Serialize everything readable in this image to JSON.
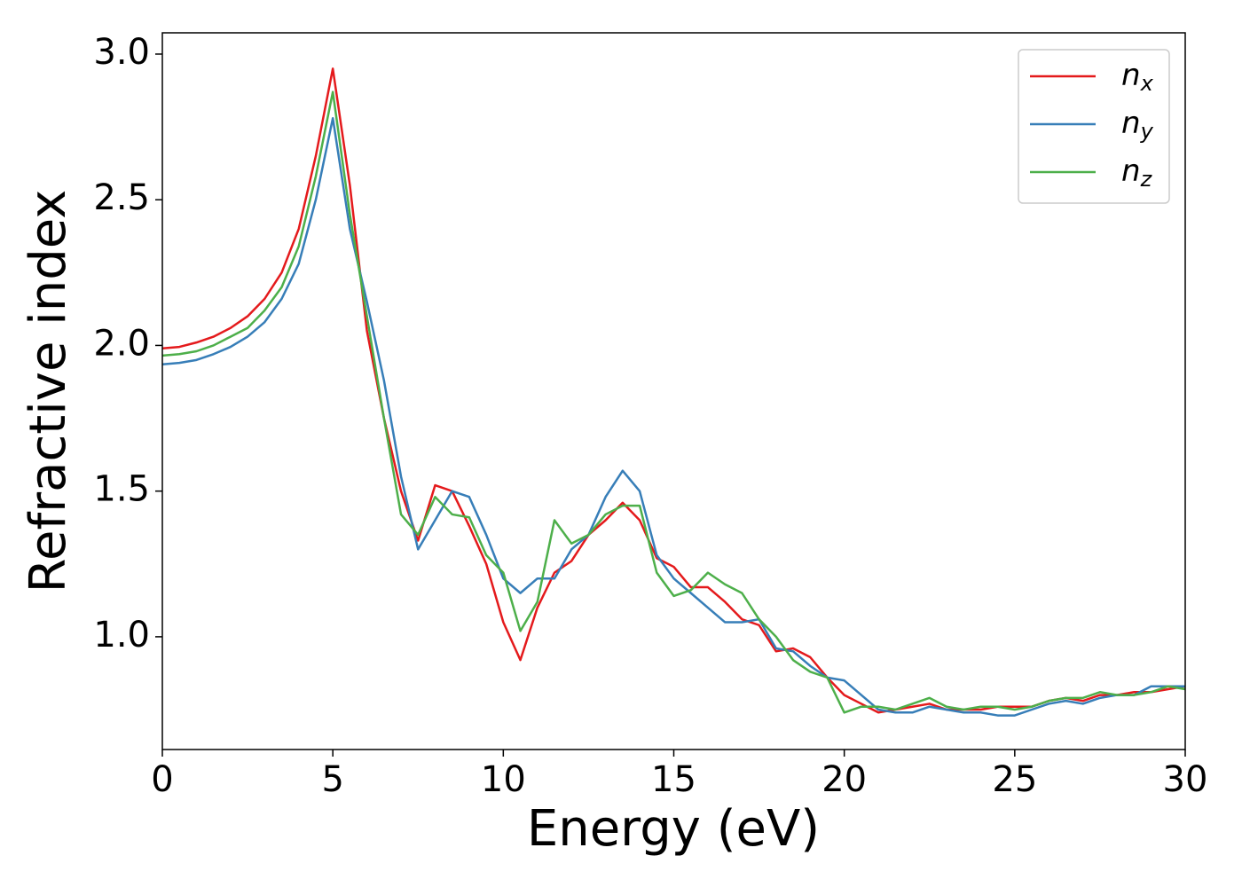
{
  "chart_data": {
    "type": "line",
    "xlabel": "Energy (eV)",
    "ylabel": "Refractive index",
    "x": [
      0,
      0.5,
      1,
      1.5,
      2,
      2.5,
      3,
      3.5,
      4,
      4.5,
      5,
      5.5,
      6,
      6.5,
      7,
      7.5,
      8,
      8.5,
      9,
      9.5,
      10,
      10.5,
      11,
      11.5,
      12,
      12.5,
      13,
      13.5,
      14,
      14.5,
      15,
      15.5,
      16,
      16.5,
      17,
      17.5,
      18,
      18.5,
      19,
      19.5,
      20,
      20.5,
      21,
      21.5,
      22,
      22.5,
      23,
      23.5,
      24,
      24.5,
      25,
      25.5,
      26,
      26.5,
      27,
      27.5,
      28,
      28.5,
      29,
      29.5,
      30
    ],
    "series": [
      {
        "name": "nx",
        "color": "#e41a1c",
        "values": [
          1.99,
          1.995,
          2.01,
          2.03,
          2.06,
          2.1,
          2.16,
          2.25,
          2.4,
          2.65,
          2.95,
          2.55,
          2.05,
          1.75,
          1.5,
          1.33,
          1.52,
          1.5,
          1.38,
          1.25,
          1.05,
          0.92,
          1.1,
          1.22,
          1.26,
          1.35,
          1.4,
          1.46,
          1.4,
          1.27,
          1.24,
          1.17,
          1.17,
          1.12,
          1.06,
          1.04,
          0.95,
          0.96,
          0.93,
          0.86,
          0.8,
          0.77,
          0.74,
          0.75,
          0.76,
          0.77,
          0.75,
          0.75,
          0.75,
          0.76,
          0.76,
          0.76,
          0.78,
          0.79,
          0.78,
          0.8,
          0.8,
          0.81,
          0.81,
          0.82,
          0.83
        ]
      },
      {
        "name": "ny",
        "color": "#377eb8",
        "values": [
          1.935,
          1.94,
          1.95,
          1.97,
          1.995,
          2.03,
          2.08,
          2.16,
          2.28,
          2.5,
          2.78,
          2.4,
          2.15,
          1.88,
          1.55,
          1.3,
          1.4,
          1.5,
          1.48,
          1.35,
          1.2,
          1.15,
          1.2,
          1.2,
          1.3,
          1.35,
          1.48,
          1.57,
          1.5,
          1.28,
          1.2,
          1.15,
          1.1,
          1.05,
          1.05,
          1.06,
          0.96,
          0.95,
          0.9,
          0.86,
          0.85,
          0.8,
          0.75,
          0.74,
          0.74,
          0.76,
          0.75,
          0.74,
          0.74,
          0.73,
          0.73,
          0.75,
          0.77,
          0.78,
          0.77,
          0.79,
          0.8,
          0.8,
          0.83,
          0.83,
          0.83
        ]
      },
      {
        "name": "nz",
        "color": "#4daf4a",
        "values": [
          1.965,
          1.97,
          1.98,
          2.0,
          2.03,
          2.06,
          2.12,
          2.2,
          2.34,
          2.58,
          2.87,
          2.45,
          2.1,
          1.75,
          1.42,
          1.35,
          1.48,
          1.42,
          1.41,
          1.28,
          1.22,
          1.02,
          1.12,
          1.4,
          1.32,
          1.35,
          1.42,
          1.45,
          1.45,
          1.22,
          1.14,
          1.16,
          1.22,
          1.18,
          1.15,
          1.06,
          1.0,
          0.92,
          0.88,
          0.86,
          0.74,
          0.76,
          0.76,
          0.75,
          0.77,
          0.79,
          0.76,
          0.75,
          0.76,
          0.76,
          0.75,
          0.76,
          0.78,
          0.79,
          0.79,
          0.81,
          0.8,
          0.8,
          0.81,
          0.83,
          0.82
        ]
      }
    ],
    "xlim": [
      0,
      30
    ],
    "xticks": [
      0,
      5,
      10,
      15,
      20,
      25,
      30
    ],
    "ylim": [
      0.613,
      3.073
    ],
    "yticks": [
      {
        "value": 1,
        "label": "1.0"
      },
      {
        "value": 1.5,
        "label": "1.5"
      },
      {
        "value": 2,
        "label": "2.0"
      },
      {
        "value": 2.5,
        "label": "2.5"
      },
      {
        "value": 3,
        "label": "3.0"
      }
    ],
    "legend": "upper right",
    "grid": false
  }
}
